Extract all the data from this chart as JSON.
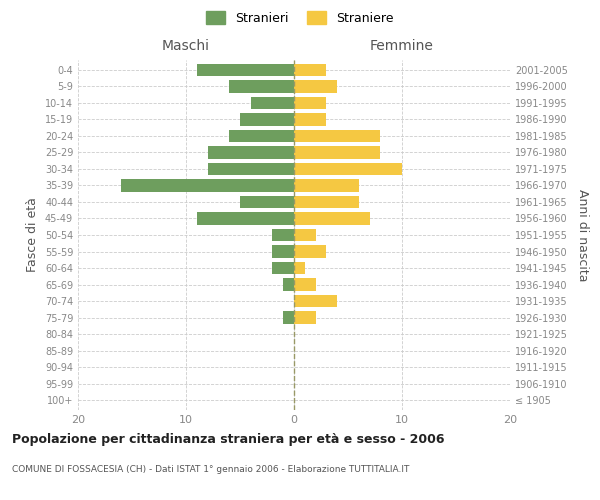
{
  "age_groups": [
    "100+",
    "95-99",
    "90-94",
    "85-89",
    "80-84",
    "75-79",
    "70-74",
    "65-69",
    "60-64",
    "55-59",
    "50-54",
    "45-49",
    "40-44",
    "35-39",
    "30-34",
    "25-29",
    "20-24",
    "15-19",
    "10-14",
    "5-9",
    "0-4"
  ],
  "birth_years": [
    "≤ 1905",
    "1906-1910",
    "1911-1915",
    "1916-1920",
    "1921-1925",
    "1926-1930",
    "1931-1935",
    "1936-1940",
    "1941-1945",
    "1946-1950",
    "1951-1955",
    "1956-1960",
    "1961-1965",
    "1966-1970",
    "1971-1975",
    "1976-1980",
    "1981-1985",
    "1986-1990",
    "1991-1995",
    "1996-2000",
    "2001-2005"
  ],
  "maschi": [
    0,
    0,
    0,
    0,
    0,
    1,
    0,
    1,
    2,
    2,
    2,
    9,
    5,
    16,
    8,
    8,
    6,
    5,
    4,
    6,
    9
  ],
  "femmine": [
    0,
    0,
    0,
    0,
    0,
    2,
    4,
    2,
    1,
    3,
    2,
    7,
    6,
    6,
    10,
    8,
    8,
    3,
    3,
    4,
    3
  ],
  "maschi_color": "#6e9e5e",
  "femmine_color": "#f5c842",
  "bg_color": "#ffffff",
  "grid_color": "#cccccc",
  "title": "Popolazione per cittadinanza straniera per età e sesso - 2006",
  "subtitle": "COMUNE DI FOSSACESIA (CH) - Dati ISTAT 1° gennaio 2006 - Elaborazione TUTTITALIA.IT",
  "xlabel_left": "Maschi",
  "xlabel_right": "Femmine",
  "ylabel_left": "Fasce di età",
  "ylabel_right": "Anni di nascita",
  "legend_stranieri": "Stranieri",
  "legend_straniere": "Straniere",
  "xlim": 20,
  "bar_height": 0.75
}
